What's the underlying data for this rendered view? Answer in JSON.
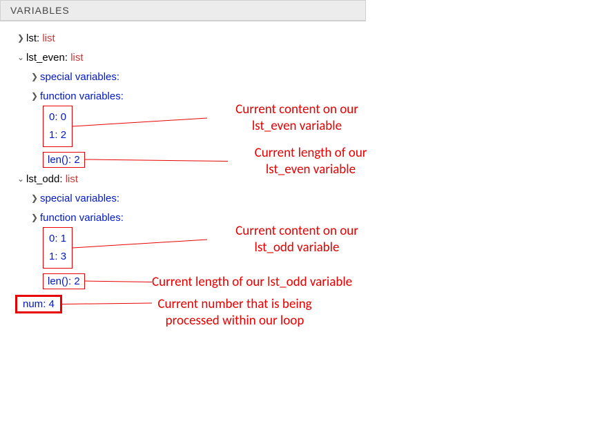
{
  "panel": {
    "title": "VARIABLES"
  },
  "vars": {
    "lst": {
      "name": "lst",
      "type": "list"
    },
    "lst_even": {
      "name": "lst_even",
      "type": "list",
      "special_label": "special variables:",
      "function_label": "function variables:",
      "items": [
        {
          "key": "0",
          "val": "0"
        },
        {
          "key": "1",
          "val": "2"
        }
      ],
      "len_label": "len()",
      "len_val": "2"
    },
    "lst_odd": {
      "name": "lst_odd",
      "type": "list",
      "special_label": "special variables:",
      "function_label": "function variables:",
      "items": [
        {
          "key": "0",
          "val": "1"
        },
        {
          "key": "1",
          "val": "3"
        }
      ],
      "len_label": "len()",
      "len_val": "2"
    },
    "num": {
      "name": "num",
      "val": "4"
    }
  },
  "annotations": {
    "even_content_l1": "Current content on our",
    "even_content_l2": "lst_even variable",
    "even_len_l1": "Current length of our",
    "even_len_l2": "lst_even variable",
    "odd_content_l1": "Current content on our",
    "odd_content_l2": "lst_odd variable",
    "odd_len": "Current length of our lst_odd variable",
    "num_l1": "Current number that is being",
    "num_l2": "processed within our loop"
  },
  "colors": {
    "annotation": "#e80000",
    "type": "#c93838",
    "member": "#0018c9",
    "header_bg": "#ececec"
  }
}
